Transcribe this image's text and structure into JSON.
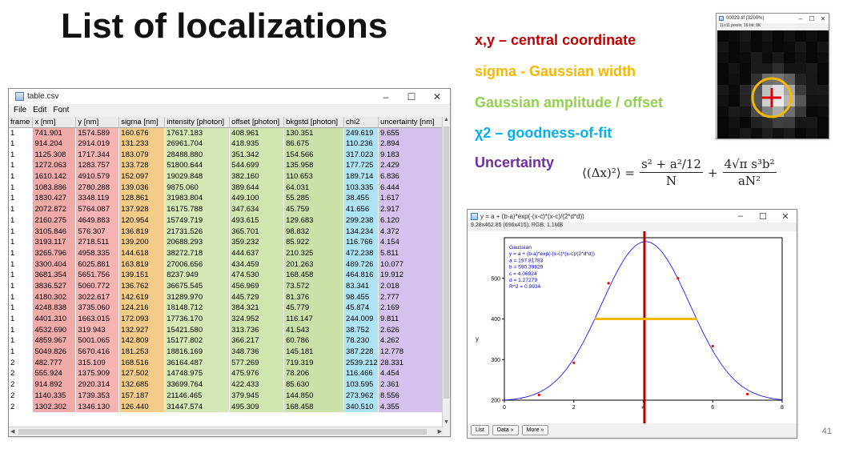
{
  "slide": {
    "title": "List of localizations",
    "page_number": "41",
    "legend": [
      {
        "text": "x,y – central coordinate",
        "color": "#c00000"
      },
      {
        "text": "sigma - Gaussian width",
        "color": "#f5b800"
      },
      {
        "text": "Gaussian amplitude / offset",
        "color": "#92d050"
      },
      {
        "text": "χ2 – goodness-of-fit",
        "color": "#00b0f0"
      },
      {
        "text": "Uncertainty",
        "color": "#7030a0"
      }
    ],
    "formula": {
      "lhs": "⟨(Δx)²⟩ =",
      "t1_num": "s² + a²/12",
      "t1_den": "N",
      "plus": "+",
      "t2_num": "4√π s³b²",
      "t2_den": "aN²"
    }
  },
  "table_window": {
    "title": "table.csv",
    "menu": [
      "File",
      "Edit",
      "Font"
    ],
    "controls": {
      "minimize": "–",
      "maximize": "☐",
      "close": "✕"
    },
    "columns": [
      "frame",
      "x [nm]",
      "y [nm]",
      "sigma [nm]",
      "intensity [photon]",
      "offset [photon]",
      "bkgstd [photon]",
      "chi2",
      "uncertainty [nm]"
    ],
    "rows": [
      [
        "1",
        "741.901",
        "1574.589",
        "160.676",
        "17617.183",
        "408.961",
        "130.351",
        "249.619",
        "9.655"
      ],
      [
        "1",
        "914.204",
        "2914.019",
        "131.233",
        "26961.704",
        "418.935",
        "86.675",
        "110.236",
        "2.894"
      ],
      [
        "1",
        "1125.308",
        "1717.344",
        "183.079",
        "28488.880",
        "351.342",
        "154.566",
        "317.023",
        "9.183"
      ],
      [
        "1",
        "1272.063",
        "1283.757",
        "133.728",
        "51800.644",
        "544.699",
        "135.958",
        "177.725",
        "2.429"
      ],
      [
        "1",
        "1610.142",
        "4910.579",
        "152.097",
        "19029.848",
        "382.160",
        "110.653",
        "189.714",
        "6.836"
      ],
      [
        "1",
        "1083.886",
        "2780.288",
        "139.036",
        "9875.060",
        "389.644",
        "64.031",
        "103.335",
        "6.444"
      ],
      [
        "1",
        "1830.427",
        "3348.119",
        "128.861",
        "31983.804",
        "449.100",
        "55.285",
        "38.455",
        "1.617"
      ],
      [
        "1",
        "2072.872",
        "5764.087",
        "137.928",
        "16175.788",
        "347.634",
        "45.759",
        "41.656",
        "2.917"
      ],
      [
        "1",
        "2160.275",
        "4649.883",
        "120.954",
        "15749.719",
        "493.615",
        "129.683",
        "299.238",
        "6.120"
      ],
      [
        "1",
        "3105.846",
        "576.307",
        "136.819",
        "21731.526",
        "365.701",
        "98.832",
        "134.234",
        "4.372"
      ],
      [
        "1",
        "3193.117",
        "2718.511",
        "139.200",
        "20688.293",
        "359.232",
        "85.922",
        "116.766",
        "4.154"
      ],
      [
        "1",
        "3265.796",
        "4958.335",
        "144.618",
        "38272.718",
        "444.637",
        "210.325",
        "472.238",
        "5.811"
      ],
      [
        "1",
        "3300.404",
        "6025.881",
        "163.819",
        "27006.656",
        "434.459",
        "201.263",
        "489.726",
        "10.077"
      ],
      [
        "1",
        "3681.354",
        "5651.756",
        "139.151",
        "8237.949",
        "474.530",
        "168.458",
        "464.816",
        "19.912"
      ],
      [
        "1",
        "3836.527",
        "5060.772",
        "136.762",
        "36675.545",
        "456.969",
        "73.572",
        "83.341",
        "2.018"
      ],
      [
        "1",
        "4180.302",
        "3022.617",
        "142.619",
        "31289.970",
        "445.729",
        "81.376",
        "98.455",
        "2.777"
      ],
      [
        "1",
        "4248.838",
        "3735.060",
        "124.216",
        "18148.712",
        "384.321",
        "45.779",
        "45.874",
        "2.169"
      ],
      [
        "1",
        "4401.310",
        "1663.015",
        "172.093",
        "17736.170",
        "324.952",
        "116.147",
        "244.009",
        "9.811"
      ],
      [
        "1",
        "4532.690",
        "319.943",
        "132.927",
        "15421.580",
        "313.736",
        "41.543",
        "38.752",
        "2.626"
      ],
      [
        "1",
        "4859.967",
        "5001.065",
        "142.809",
        "15177.802",
        "366.217",
        "60.786",
        "78.230",
        "4.262"
      ],
      [
        "1",
        "5049.826",
        "5670.416",
        "181.253",
        "18816.169",
        "348.736",
        "145.181",
        "387.228",
        "12.778"
      ],
      [
        "2",
        "482.777",
        "315.109",
        "168.516",
        "36164.487",
        "577.269",
        "719.319",
        "2539.212",
        "28.331"
      ],
      [
        "2",
        "555.924",
        "1375.909",
        "127.502",
        "14748.975",
        "475.976",
        "78.206",
        "116.466",
        "4.454"
      ],
      [
        "2",
        "914.892",
        "2920.314",
        "132.685",
        "33699.764",
        "422.433",
        "85.630",
        "103.595",
        "2.361"
      ],
      [
        "2",
        "1140.335",
        "1739.353",
        "157.187",
        "21146.465",
        "379.945",
        "144.850",
        "273.962",
        "8.556"
      ],
      [
        "2",
        "1302.302",
        "1346.130",
        "126.440",
        "31447.574",
        "495.309",
        "168.458",
        "340.510",
        "4.355"
      ]
    ]
  },
  "image_window": {
    "title": "00029.tif (3200%)",
    "info": "11x11 pixels; 16-bit; 8K"
  },
  "plot_window": {
    "title": "y = a + (b-a)*exp(-(x-c)*(x-c)/(2*d*d))",
    "info": "9.28x462.85  (696x415); RGB; 1.1MB",
    "fit_text": [
      "Gaussian",
      "y = a + (b-a)*exp(-(x-c)*(x-c)/(2*d*d))",
      "a = 197.81783",
      "b = 590.39829",
      "c = 4.06924",
      "d = 1.27279",
      "R^2 = 0.9934"
    ],
    "ylabel": "y",
    "buttons": [
      "List",
      "Data »",
      "More »"
    ],
    "colors": {
      "curve": "#0000ff",
      "points": "#ff0000",
      "vline": "#b00000",
      "hline": "#f5b800"
    }
  },
  "chart_data": {
    "type": "scatter",
    "xlim": [
      0,
      8
    ],
    "ylim": [
      200,
      600
    ],
    "xticks": [
      0,
      2,
      4,
      6,
      8
    ],
    "yticks": [
      200,
      300,
      400,
      500
    ],
    "points": [
      [
        1,
        213
      ],
      [
        2,
        292
      ],
      [
        3,
        488
      ],
      [
        5,
        500
      ],
      [
        6,
        333
      ],
      [
        7,
        215
      ]
    ],
    "fit": {
      "a": 197.81783,
      "b": 590.39829,
      "c": 4.06924,
      "d": 1.27279
    },
    "ylabel": "y"
  }
}
